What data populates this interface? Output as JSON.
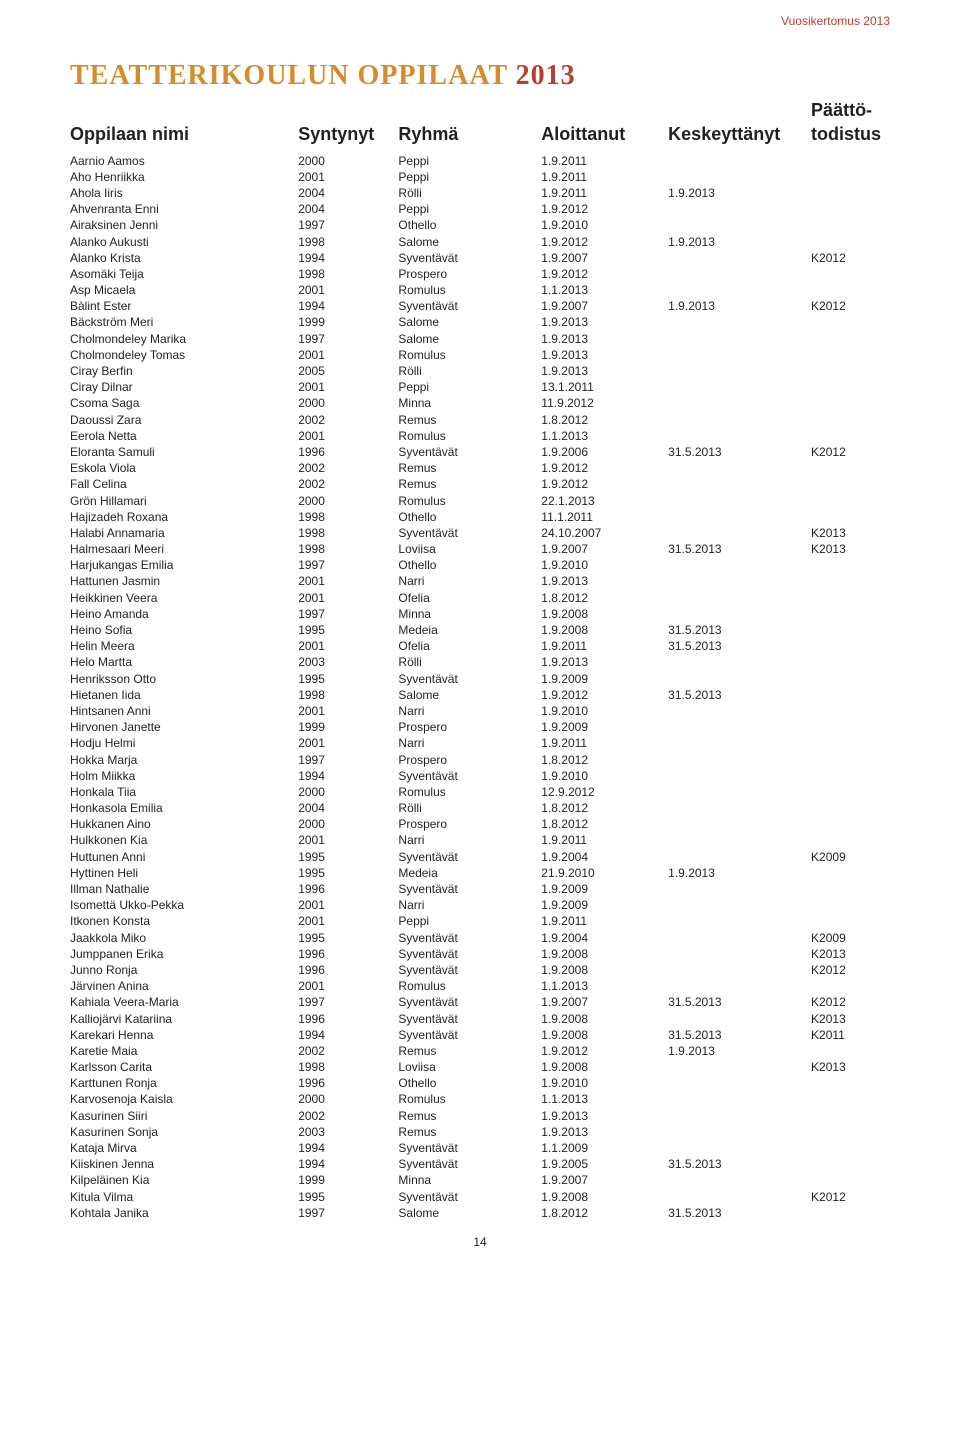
{
  "header_right": "Vuosikertomus 2013",
  "title_word1": "TEATTERIKOULUN",
  "title_word2": "OPPILAAT",
  "title_year": "2013",
  "columns": {
    "name": "Oppilaan nimi",
    "born": "Syntynyt",
    "group": "Ryhmä",
    "start": "Aloittanut",
    "end": "Keskeyttänyt",
    "cert": "Päättö-\ntodistus"
  },
  "page_number": "14",
  "rows": [
    [
      "Aarnio Aamos",
      "2000",
      "Peppi",
      "1.9.2011",
      "",
      ""
    ],
    [
      "Aho Henriikka",
      "2001",
      "Peppi",
      "1.9.2011",
      "",
      ""
    ],
    [
      "Ahola Iiris",
      "2004",
      "Rölli",
      "1.9.2011",
      "1.9.2013",
      ""
    ],
    [
      "Ahvenranta Enni",
      "2004",
      "Peppi",
      "1.9.2012",
      "",
      ""
    ],
    [
      "Airaksinen Jenni",
      "1997",
      "Othello",
      "1.9.2010",
      "",
      ""
    ],
    [
      "Alanko Aukusti",
      "1998",
      "Salome",
      "1.9.2012",
      "1.9.2013",
      ""
    ],
    [
      "Alanko Krista",
      "1994",
      "Syventävät",
      "1.9.2007",
      "",
      "K2012"
    ],
    [
      "Asomäki Teija",
      "1998",
      "Prospero",
      "1.9.2012",
      "",
      ""
    ],
    [
      "Asp Micaela",
      "2001",
      "Romulus",
      "1.1.2013",
      "",
      ""
    ],
    [
      "Bàlint Ester",
      "1994",
      "Syventävät",
      "1.9.2007",
      "1.9.2013",
      "K2012"
    ],
    [
      "Bäckström Meri",
      "1999",
      "Salome",
      "1.9.2013",
      "",
      ""
    ],
    [
      "Cholmondeley Marika",
      "1997",
      "Salome",
      "1.9.2013",
      "",
      ""
    ],
    [
      "Cholmondeley Tomas",
      "2001",
      "Romulus",
      "1.9.2013",
      "",
      ""
    ],
    [
      "Ciray Berfin",
      "2005",
      "Rölli",
      "1.9.2013",
      "",
      ""
    ],
    [
      "Ciray Dilnar",
      "2001",
      "Peppi",
      "13.1.2011",
      "",
      ""
    ],
    [
      "Csoma Saga",
      "2000",
      "Minna",
      "11.9.2012",
      "",
      ""
    ],
    [
      "Daoussi Zara",
      "2002",
      "Remus",
      "1.8.2012",
      "",
      ""
    ],
    [
      "Eerola Netta",
      "2001",
      "Romulus",
      "1.1.2013",
      "",
      ""
    ],
    [
      "Eloranta Samuli",
      "1996",
      "Syventävät",
      "1.9.2006",
      "31.5.2013",
      "K2012"
    ],
    [
      "Eskola Viola",
      "2002",
      "Remus",
      "1.9.2012",
      "",
      ""
    ],
    [
      "Fall Celina",
      "2002",
      "Remus",
      "1.9.2012",
      "",
      ""
    ],
    [
      "Grön Hillamari",
      "2000",
      "Romulus",
      "22.1.2013",
      "",
      ""
    ],
    [
      "Hajizadeh Roxana",
      "1998",
      "Othello",
      "11.1.2011",
      "",
      ""
    ],
    [
      "Halabi Annamaria",
      "1998",
      "Syventävät",
      "24.10.2007",
      "",
      "K2013"
    ],
    [
      "Halmesaari Meeri",
      "1998",
      "Loviisa",
      "1.9.2007",
      "31.5.2013",
      "K2013"
    ],
    [
      "Harjukangas Emilia",
      "1997",
      "Othello",
      "1.9.2010",
      "",
      ""
    ],
    [
      "Hattunen Jasmin",
      "2001",
      "Narri",
      "1.9.2013",
      "",
      ""
    ],
    [
      "Heikkinen Veera",
      "2001",
      "Ofelia",
      "1.8.2012",
      "",
      ""
    ],
    [
      "Heino Amanda",
      "1997",
      "Minna",
      "1.9.2008",
      "",
      ""
    ],
    [
      "Heino Sofia",
      "1995",
      "Medeia",
      "1.9.2008",
      "31.5.2013",
      ""
    ],
    [
      "Helin Meera",
      "2001",
      "Ofelia",
      "1.9.2011",
      "31.5.2013",
      ""
    ],
    [
      "Helo Martta",
      "2003",
      "Rölli",
      "1.9.2013",
      "",
      ""
    ],
    [
      "Henriksson Otto",
      "1995",
      "Syventävät",
      "1.9.2009",
      "",
      ""
    ],
    [
      "Hietanen Iida",
      "1998",
      "Salome",
      "1.9.2012",
      "31.5.2013",
      ""
    ],
    [
      "Hintsanen Anni",
      "2001",
      "Narri",
      "1.9.2010",
      "",
      ""
    ],
    [
      "Hirvonen Janette",
      "1999",
      "Prospero",
      "1.9.2009",
      "",
      ""
    ],
    [
      "Hodju Helmi",
      "2001",
      "Narri",
      "1.9.2011",
      "",
      ""
    ],
    [
      "Hokka Marja",
      "1997",
      "Prospero",
      "1.8.2012",
      "",
      ""
    ],
    [
      "Holm Miikka",
      "1994",
      "Syventävät",
      "1.9.2010",
      "",
      ""
    ],
    [
      "Honkala Tiia",
      "2000",
      "Romulus",
      "12.9.2012",
      "",
      ""
    ],
    [
      "Honkasola Emilia",
      "2004",
      "Rölli",
      "1.8.2012",
      "",
      ""
    ],
    [
      "Hukkanen Aino",
      "2000",
      "Prospero",
      "1.8.2012",
      "",
      ""
    ],
    [
      "Hulkkonen Kia",
      "2001",
      "Narri",
      "1.9.2011",
      "",
      ""
    ],
    [
      "Huttunen Anni",
      "1995",
      "Syventävät",
      "1.9.2004",
      "",
      "K2009"
    ],
    [
      "Hyttinen Heli",
      "1995",
      "Medeia",
      "21.9.2010",
      "1.9.2013",
      ""
    ],
    [
      "Illman Nathalie",
      "1996",
      "Syventävät",
      "1.9.2009",
      "",
      ""
    ],
    [
      "Isomettä Ukko-Pekka",
      "2001",
      "Narri",
      "1.9.2009",
      "",
      ""
    ],
    [
      "Itkonen Konsta",
      "2001",
      "Peppi",
      "1.9.2011",
      "",
      ""
    ],
    [
      "Jaakkola Miko",
      "1995",
      "Syventävät",
      "1.9.2004",
      "",
      "K2009"
    ],
    [
      "Jumppanen Erika",
      "1996",
      "Syventävät",
      "1.9.2008",
      "",
      "K2013"
    ],
    [
      "Junno Ronja",
      "1996",
      "Syventävät",
      "1.9.2008",
      "",
      "K2012"
    ],
    [
      "Järvinen Anina",
      "2001",
      "Romulus",
      "1.1.2013",
      "",
      ""
    ],
    [
      "Kahiala Veera-Maria",
      "1997",
      "Syventävät",
      "1.9.2007",
      "31.5.2013",
      "K2012"
    ],
    [
      "Kalliojärvi Katariina",
      "1996",
      "Syventävät",
      "1.9.2008",
      "",
      "K2013"
    ],
    [
      "Karekari Henna",
      "1994",
      "Syventävät",
      "1.9.2008",
      "31.5.2013",
      "K2011"
    ],
    [
      "Karetie Maia",
      "2002",
      "Remus",
      "1.9.2012",
      "1.9.2013",
      ""
    ],
    [
      "Karlsson Carita",
      "1998",
      "Loviisa",
      "1.9.2008",
      "",
      "K2013"
    ],
    [
      "Karttunen Ronja",
      "1996",
      "Othello",
      "1.9.2010",
      "",
      ""
    ],
    [
      "Karvosenoja Kaisla",
      "2000",
      "Romulus",
      "1.1.2013",
      "",
      ""
    ],
    [
      "Kasurinen Siiri",
      "2002",
      "Remus",
      "1.9.2013",
      "",
      ""
    ],
    [
      "Kasurinen Sonja",
      "2003",
      "Remus",
      "1.9.2013",
      "",
      ""
    ],
    [
      "Kataja Mirva",
      "1994",
      "Syventävät",
      "1.1.2009",
      "",
      ""
    ],
    [
      "Kiiskinen Jenna",
      "1994",
      "Syventävät",
      "1.9.2005",
      "31.5.2013",
      ""
    ],
    [
      "Kilpeläinen Kia",
      "1999",
      "Minna",
      "1.9.2007",
      "",
      ""
    ],
    [
      "Kitula Vilma",
      "1995",
      "Syventävät",
      "1.9.2008",
      "",
      "K2012"
    ],
    [
      "Kohtala Janika",
      "1997",
      "Salome",
      "1.8.2012",
      "31.5.2013",
      ""
    ]
  ]
}
